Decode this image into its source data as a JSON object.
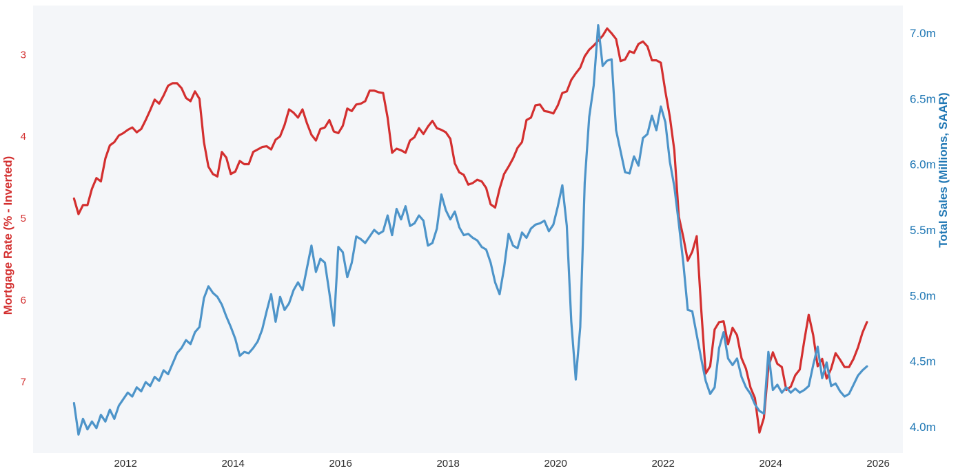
{
  "chart_data": {
    "type": "line",
    "title": "",
    "plot_background": "#f4f6f9",
    "outer_background": "#ffffff",
    "grid": "off",
    "x_axis": {
      "range": [
        2010.28,
        2026.46
      ],
      "ticks": [
        2012,
        2014,
        2016,
        2018,
        2020,
        2022,
        2024,
        2026
      ],
      "tick_labels": [
        "2012",
        "2014",
        "2016",
        "2018",
        "2020",
        "2022",
        "2024",
        "2026"
      ],
      "tick_color": "#2b2b2b"
    },
    "left_axis": {
      "label": "Mortgage Rate (% - Inverted)",
      "color": "#d32f2f",
      "inverted": true,
      "range": [
        2.4,
        7.87
      ],
      "ticks": [
        3,
        4,
        5,
        6,
        7
      ],
      "tick_labels": [
        "3",
        "4",
        "5",
        "6",
        "7"
      ]
    },
    "right_axis": {
      "label": "Total Sales (Millions, SAAR)",
      "color": "#1f77b4",
      "range": [
        3.8,
        7.21
      ],
      "ticks": [
        7.0,
        6.5,
        6.0,
        5.5,
        5.0,
        4.5,
        4.0
      ],
      "tick_labels": [
        "7.0m",
        "6.5m",
        "6.0m",
        "5.5m",
        "5.0m",
        "4.5m",
        "4.0m"
      ]
    },
    "series": [
      {
        "id": "mortgage-rate-line",
        "name": "Mortgage Rate (% - Inverted)",
        "axis": "left",
        "color": "#d32f2f",
        "frequency": "monthly",
        "start": {
          "year": 2011,
          "month": 1
        },
        "end": {
          "year": 2025,
          "month": 10
        },
        "values": [
          4.76,
          4.95,
          4.84,
          4.84,
          4.64,
          4.51,
          4.55,
          4.27,
          4.11,
          4.07,
          3.99,
          3.96,
          3.92,
          3.89,
          3.95,
          3.91,
          3.8,
          3.68,
          3.55,
          3.6,
          3.5,
          3.38,
          3.35,
          3.35,
          3.41,
          3.53,
          3.57,
          3.45,
          3.54,
          4.07,
          4.37,
          4.46,
          4.49,
          4.19,
          4.26,
          4.46,
          4.43,
          4.3,
          4.34,
          4.34,
          4.19,
          4.16,
          4.13,
          4.12,
          4.16,
          4.04,
          4.0,
          3.86,
          3.67,
          3.71,
          3.77,
          3.67,
          3.84,
          3.98,
          4.05,
          3.91,
          3.89,
          3.8,
          3.94,
          3.96,
          3.87,
          3.66,
          3.69,
          3.61,
          3.6,
          3.57,
          3.44,
          3.44,
          3.46,
          3.47,
          3.77,
          4.2,
          4.15,
          4.17,
          4.2,
          4.05,
          4.01,
          3.9,
          3.97,
          3.88,
          3.81,
          3.9,
          3.92,
          3.95,
          4.03,
          4.33,
          4.44,
          4.47,
          4.59,
          4.57,
          4.53,
          4.55,
          4.63,
          4.83,
          4.87,
          4.64,
          4.46,
          4.37,
          4.27,
          4.14,
          4.07,
          3.8,
          3.77,
          3.62,
          3.61,
          3.69,
          3.7,
          3.72,
          3.62,
          3.47,
          3.45,
          3.31,
          3.23,
          3.16,
          3.02,
          2.94,
          2.89,
          2.83,
          2.77,
          2.68,
          2.74,
          2.81,
          3.08,
          3.06,
          2.96,
          2.98,
          2.87,
          2.84,
          2.9,
          3.07,
          3.07,
          3.1,
          3.45,
          3.76,
          4.17,
          4.98,
          5.23,
          5.52,
          5.41,
          5.22,
          6.11,
          6.9,
          6.81,
          6.36,
          6.27,
          6.26,
          6.54,
          6.34,
          6.43,
          6.71,
          6.84,
          7.07,
          7.2,
          7.62,
          7.44,
          6.82,
          6.64,
          6.78,
          6.82,
          7.1,
          7.06,
          6.92,
          6.85,
          6.5,
          6.18,
          6.43,
          6.81,
          6.72,
          6.96,
          6.84,
          6.65,
          6.73,
          6.82,
          6.82,
          6.72,
          6.58,
          6.4,
          6.27
        ]
      },
      {
        "id": "total-sales-line",
        "name": "Total Sales (Millions, SAAR)",
        "axis": "right",
        "color": "#4d94c9",
        "frequency": "monthly",
        "start": {
          "year": 2011,
          "month": 1
        },
        "end": {
          "year": 2025,
          "month": 10
        },
        "values": [
          4.18,
          3.94,
          4.06,
          3.98,
          4.04,
          3.99,
          4.09,
          4.04,
          4.13,
          4.06,
          4.16,
          4.21,
          4.26,
          4.23,
          4.3,
          4.27,
          4.34,
          4.31,
          4.38,
          4.35,
          4.43,
          4.4,
          4.48,
          4.56,
          4.6,
          4.66,
          4.63,
          4.72,
          4.76,
          4.98,
          5.07,
          5.02,
          4.99,
          4.93,
          4.84,
          4.76,
          4.67,
          4.54,
          4.57,
          4.56,
          4.6,
          4.65,
          4.74,
          4.88,
          5.01,
          4.8,
          4.99,
          4.89,
          4.94,
          5.04,
          5.1,
          5.04,
          5.21,
          5.38,
          5.18,
          5.28,
          5.25,
          5.02,
          4.77,
          5.37,
          5.33,
          5.14,
          5.25,
          5.45,
          5.43,
          5.4,
          5.45,
          5.5,
          5.47,
          5.49,
          5.61,
          5.46,
          5.66,
          5.58,
          5.68,
          5.53,
          5.55,
          5.61,
          5.57,
          5.38,
          5.4,
          5.51,
          5.77,
          5.65,
          5.58,
          5.64,
          5.52,
          5.46,
          5.47,
          5.44,
          5.42,
          5.37,
          5.35,
          5.25,
          5.1,
          5.01,
          5.21,
          5.47,
          5.38,
          5.36,
          5.48,
          5.44,
          5.51,
          5.54,
          5.55,
          5.57,
          5.49,
          5.54,
          5.68,
          5.84,
          5.53,
          4.8,
          4.36,
          4.76,
          5.86,
          6.36,
          6.6,
          7.06,
          6.75,
          6.79,
          6.8,
          6.26,
          6.1,
          5.94,
          5.93,
          6.06,
          5.99,
          6.2,
          6.23,
          6.37,
          6.26,
          6.44,
          6.32,
          6.02,
          5.83,
          5.55,
          5.25,
          4.89,
          4.88,
          4.7,
          4.52,
          4.35,
          4.25,
          4.3,
          4.6,
          4.72,
          4.52,
          4.47,
          4.52,
          4.38,
          4.3,
          4.25,
          4.17,
          4.12,
          4.1,
          4.57,
          4.28,
          4.32,
          4.26,
          4.3,
          4.26,
          4.29,
          4.26,
          4.28,
          4.31,
          4.47,
          4.61,
          4.37,
          4.49,
          4.31,
          4.33,
          4.27,
          4.23,
          4.25,
          4.32,
          4.39,
          4.43,
          4.46
        ]
      }
    ]
  }
}
